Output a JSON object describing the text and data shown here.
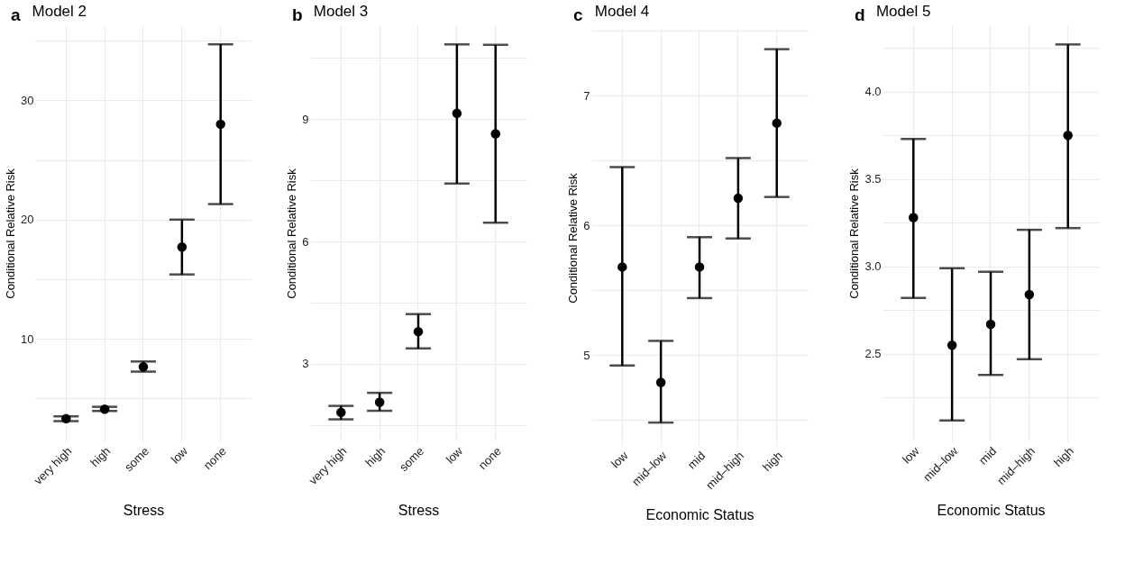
{
  "chart_data": [
    {
      "type": "scatter",
      "title": "Model 2",
      "annotations": [
        "a"
      ],
      "xlabel": "Stress",
      "ylabel": "Conditional Relative Risk",
      "categories": [
        "very high",
        "high",
        "some",
        "low",
        "none"
      ],
      "series": [
        {
          "color": "#000000",
          "values": [
            3.3,
            4.1,
            7.65,
            17.7,
            28.0
          ],
          "errors": [
            [
              3.1,
              3.5
            ],
            [
              3.95,
              4.3
            ],
            [
              7.25,
              8.1
            ],
            [
              15.4,
              20.0
            ],
            [
              21.3,
              34.7
            ]
          ]
        }
      ],
      "ylim": [
        1.4,
        36.3
      ],
      "yticks": [
        {
          "value": 5,
          "label": null
        },
        10,
        {
          "value": 15,
          "label": null
        },
        20,
        {
          "value": 25,
          "label": null
        },
        30,
        {
          "value": 35,
          "label": null
        }
      ],
      "grid": true,
      "marker": "circle"
    },
    {
      "type": "scatter",
      "title": "Model 3",
      "annotations": [
        "b"
      ],
      "xlabel": "Stress",
      "ylabel": "Conditional Relative Risk",
      "categories": [
        "very high",
        "high",
        "some",
        "low",
        "none"
      ],
      "series": [
        {
          "color": "#000000",
          "values": [
            1.81,
            2.06,
            3.79,
            9.14,
            8.64
          ],
          "errors": [
            [
              1.64,
              1.97
            ],
            [
              1.85,
              2.29
            ],
            [
              3.38,
              4.22
            ],
            [
              7.42,
              10.83
            ],
            [
              6.46,
              10.82
            ]
          ]
        }
      ],
      "ylim": [
        1.1,
        11.3
      ],
      "yticks": [
        {
          "value": 1.5,
          "label": null
        },
        3,
        {
          "value": 4.5,
          "label": null
        },
        6,
        {
          "value": 7.5,
          "label": null
        },
        9,
        {
          "value": 10.5,
          "label": null
        }
      ],
      "grid": true,
      "marker": "circle"
    },
    {
      "type": "scatter",
      "title": "Model 4",
      "annotations": [
        "c"
      ],
      "xlabel": "Economic Status",
      "ylabel": "Conditional Relative Risk",
      "categories": [
        "low",
        "mid–low",
        "mid",
        "mid–high",
        "high"
      ],
      "series": [
        {
          "color": "#000000",
          "values": [
            5.68,
            4.79,
            5.68,
            6.21,
            6.79
          ],
          "errors": [
            [
              4.92,
              6.45
            ],
            [
              4.48,
              5.11
            ],
            [
              5.44,
              5.91
            ],
            [
              5.9,
              6.52
            ],
            [
              6.22,
              7.36
            ]
          ]
        }
      ],
      "ylim": [
        4.3,
        7.51
      ],
      "yticks": [
        {
          "value": 4.5,
          "label": null
        },
        5,
        {
          "value": 5.5,
          "label": null
        },
        6,
        {
          "value": 6.5,
          "label": null
        },
        7,
        {
          "value": 7.5,
          "label": null
        }
      ],
      "grid": true,
      "marker": "circle"
    },
    {
      "type": "scatter",
      "title": "Model 5",
      "annotations": [
        "d"
      ],
      "xlabel": "Economic Status",
      "ylabel": "Conditional Relative Risk",
      "categories": [
        "low",
        "mid–low",
        "mid",
        "mid–high",
        "high"
      ],
      "series": [
        {
          "color": "#000000",
          "values": [
            3.28,
            2.55,
            2.67,
            2.84,
            3.75
          ],
          "errors": [
            [
              2.82,
              3.73
            ],
            [
              2.12,
              2.99
            ],
            [
              2.38,
              2.97
            ],
            [
              2.47,
              3.21
            ],
            [
              3.22,
              4.27
            ]
          ]
        }
      ],
      "ylim": [
        2.0,
        4.38
      ],
      "yticks": [
        {
          "value": 2.25,
          "label": null
        },
        {
          "value": 2.5,
          "label": "2.5"
        },
        {
          "value": 2.75,
          "label": null
        },
        {
          "value": 3,
          "label": "3.0"
        },
        {
          "value": 3.25,
          "label": null
        },
        {
          "value": 3.5,
          "label": "3.5"
        },
        {
          "value": 3.75,
          "label": null
        },
        {
          "value": 4,
          "label": "4.0"
        },
        {
          "value": 4.25,
          "label": null
        }
      ],
      "grid": true,
      "marker": "circle"
    }
  ]
}
